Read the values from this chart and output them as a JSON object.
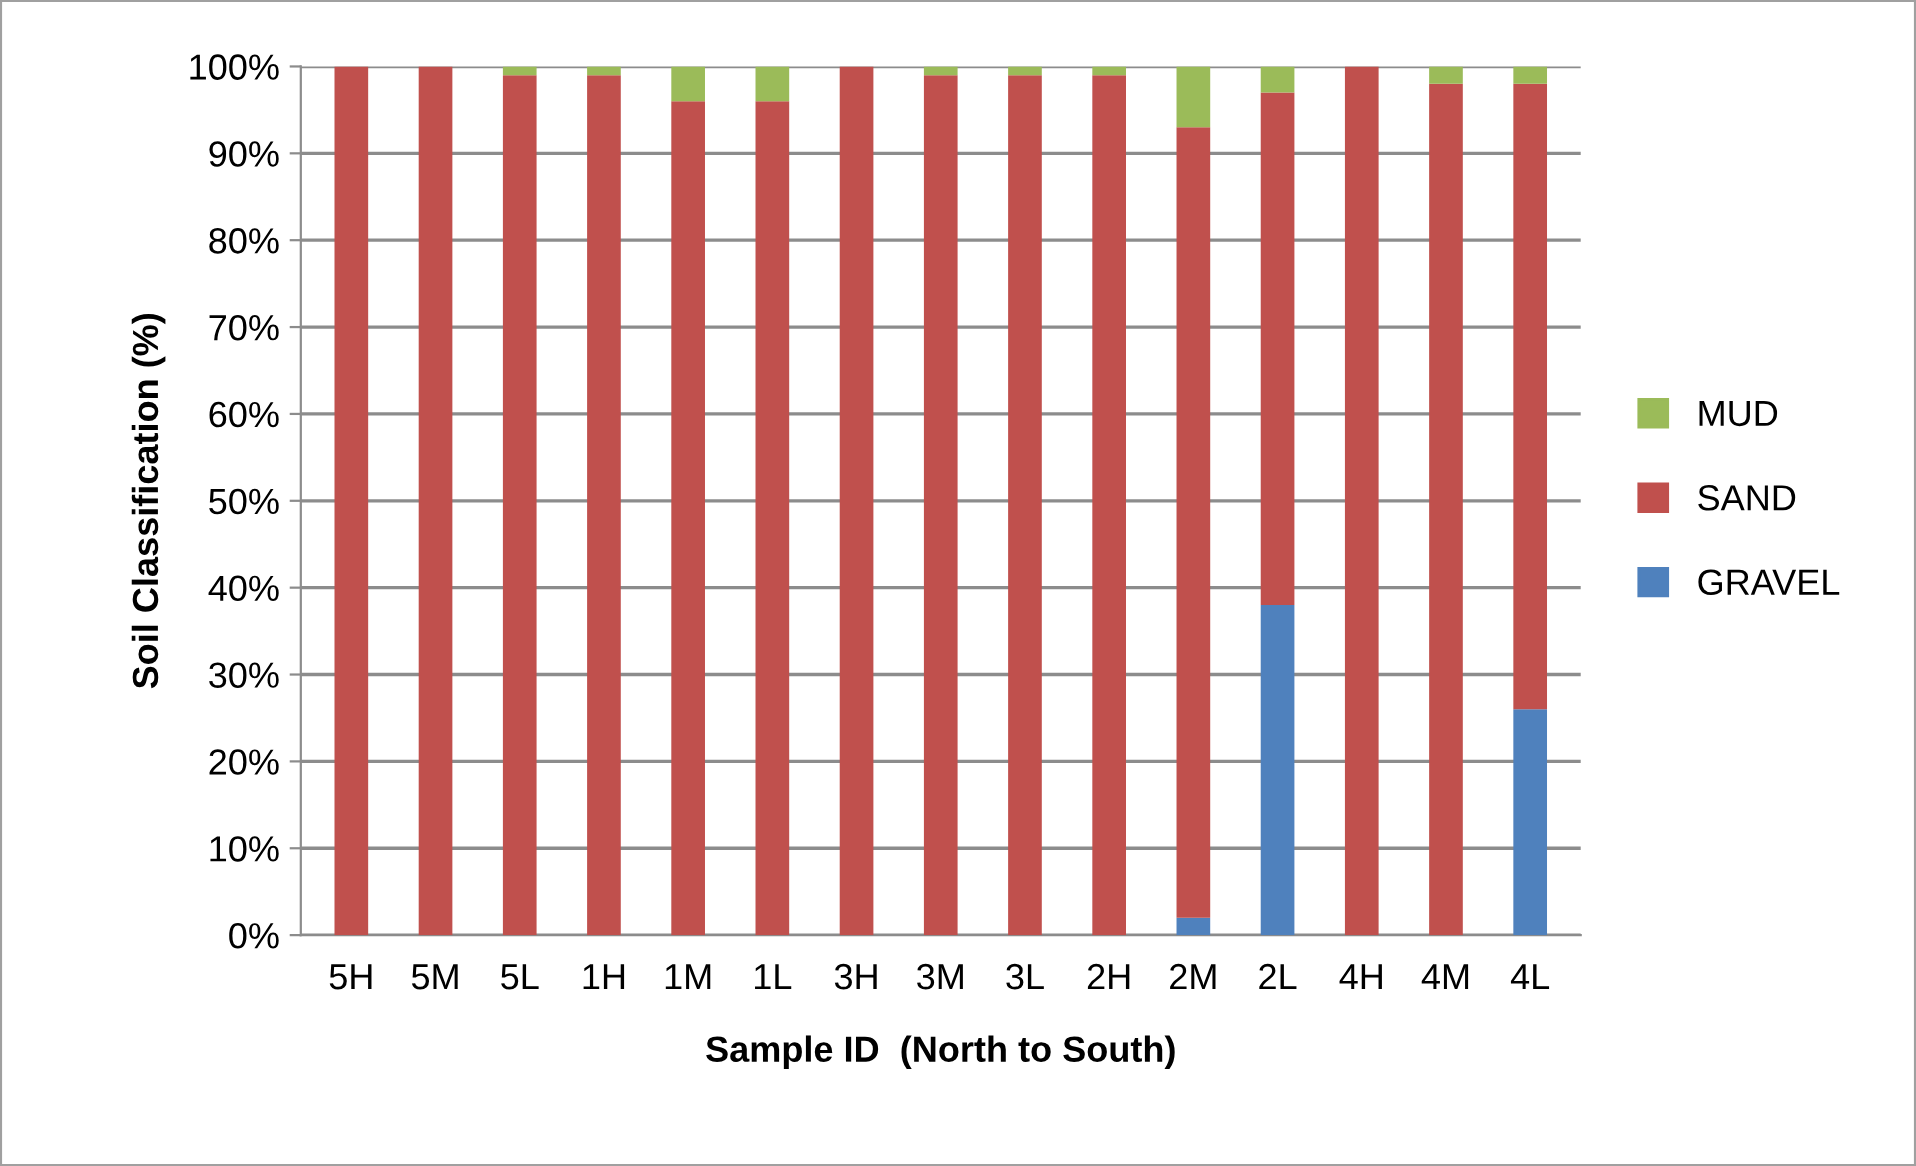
{
  "chart_data": {
    "type": "bar",
    "stacked": true,
    "xlabel": "Sample ID  (North to South)",
    "ylabel": "Soil Classification (%)",
    "categories": [
      "5H",
      "5M",
      "5L",
      "1H",
      "1M",
      "1L",
      "3H",
      "3M",
      "3L",
      "2H",
      "2M",
      "2L",
      "4H",
      "4M",
      "4L"
    ],
    "series": [
      {
        "name": "GRAVEL",
        "color": "#4f81bd",
        "values": [
          0,
          0,
          0,
          0,
          0,
          0,
          0,
          0,
          0,
          0,
          2,
          38,
          0,
          0,
          26
        ]
      },
      {
        "name": "SAND",
        "color": "#c0504d",
        "values": [
          100,
          100,
          99,
          99,
          96,
          96,
          100,
          99,
          99,
          99,
          91,
          59,
          100,
          98,
          72
        ]
      },
      {
        "name": "MUD",
        "color": "#9bbb59",
        "values": [
          0,
          0,
          1,
          1,
          4,
          4,
          0,
          1,
          1,
          1,
          7,
          3,
          0,
          2,
          2
        ]
      }
    ],
    "ylim": [
      0,
      100
    ],
    "yticks": [
      {
        "value": 0,
        "label": "0%"
      },
      {
        "value": 10,
        "label": "10%"
      },
      {
        "value": 20,
        "label": "20%"
      },
      {
        "value": 30,
        "label": "30%"
      },
      {
        "value": 40,
        "label": "40%"
      },
      {
        "value": 50,
        "label": "50%"
      },
      {
        "value": 60,
        "label": "60%"
      },
      {
        "value": 70,
        "label": "70%"
      },
      {
        "value": 80,
        "label": "80%"
      },
      {
        "value": 90,
        "label": "90%"
      },
      {
        "value": 100,
        "label": "100%"
      }
    ],
    "grid": "y",
    "legend": "right"
  }
}
